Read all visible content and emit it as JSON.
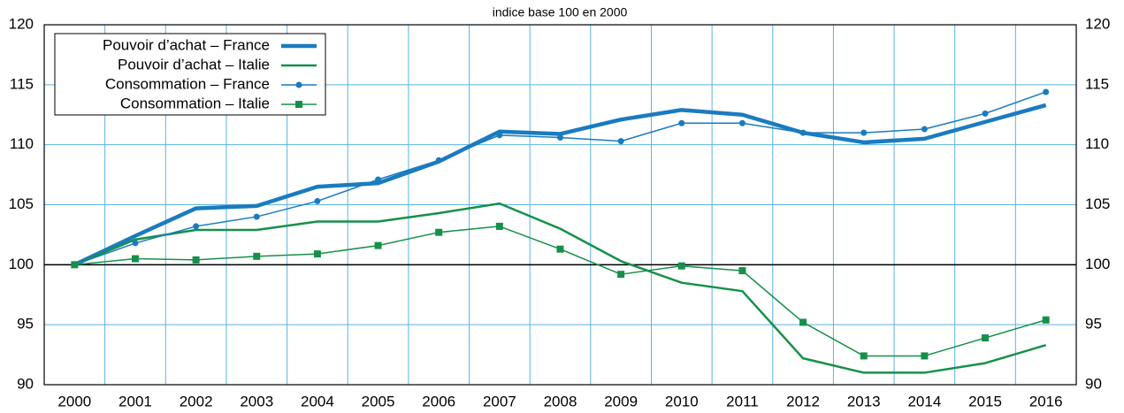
{
  "chart_data": {
    "type": "line",
    "subtitle": "indice base 100 en 2000",
    "categories": [
      "2000",
      "2001",
      "2002",
      "2003",
      "2004",
      "2005",
      "2006",
      "2007",
      "2008",
      "2009",
      "2010",
      "2011",
      "2012",
      "2013",
      "2014",
      "2015",
      "2016"
    ],
    "series": [
      {
        "name": "Pouvoir d’achat – France",
        "color": "#1a7bbf",
        "width": 4.5,
        "marker": null,
        "values": [
          100,
          102.4,
          104.7,
          104.9,
          106.5,
          106.8,
          108.6,
          111.1,
          110.9,
          112.1,
          112.9,
          112.5,
          111.0,
          110.2,
          110.5,
          111.9,
          113.3
        ]
      },
      {
        "name": "Pouvoir d’achat – Italie",
        "color": "#169048",
        "width": 2.5,
        "marker": null,
        "values": [
          100,
          102.1,
          102.9,
          102.9,
          103.6,
          103.6,
          104.3,
          105.1,
          103.0,
          100.3,
          98.5,
          97.8,
          92.2,
          91.0,
          91.0,
          91.8,
          93.3
        ]
      },
      {
        "name": "Consommation – France",
        "color": "#1a7bbf",
        "width": 1.5,
        "marker": "circle",
        "values": [
          100,
          101.8,
          103.2,
          104.0,
          105.3,
          107.1,
          108.7,
          110.8,
          110.6,
          110.3,
          111.8,
          111.8,
          111.0,
          111.0,
          111.3,
          112.6,
          114.4
        ]
      },
      {
        "name": "Consommation – Italie",
        "color": "#169048",
        "width": 1.5,
        "marker": "square",
        "values": [
          100,
          100.5,
          100.4,
          100.7,
          100.9,
          101.6,
          102.7,
          103.2,
          101.3,
          99.2,
          99.9,
          99.5,
          95.2,
          92.4,
          92.4,
          93.9,
          95.4
        ]
      }
    ],
    "ylim": [
      90,
      120
    ],
    "yticks": [
      90,
      95,
      100,
      105,
      110,
      115,
      120
    ],
    "reference_line": 100,
    "grid": true,
    "grid_color": "#5bb3e0",
    "legend": "top-left"
  }
}
